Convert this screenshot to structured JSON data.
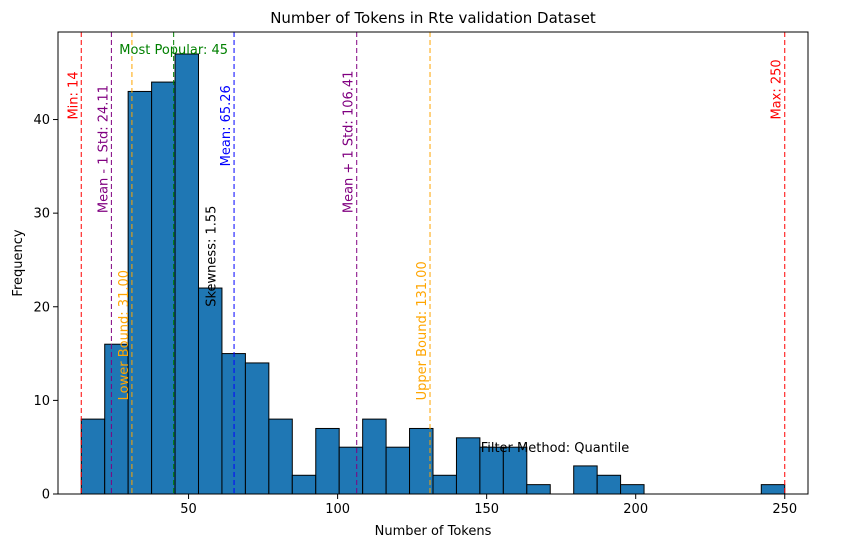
{
  "chart_data": {
    "type": "bar",
    "title": "Number of Tokens in Rte validation Dataset",
    "xlabel": "Number of Tokens",
    "ylabel": "Frequency",
    "xlim": [
      6.2,
      257.8
    ],
    "ylim": [
      0,
      49.35
    ],
    "xticks": [
      50,
      100,
      150,
      200,
      250
    ],
    "yticks": [
      0,
      10,
      20,
      30,
      40
    ],
    "bar_color": "#1f77b4",
    "bar_edge_color": "#000000",
    "bins": [
      {
        "x0": 14.0,
        "x1": 21.87,
        "count": 8
      },
      {
        "x0": 21.87,
        "x1": 29.73,
        "count": 16
      },
      {
        "x0": 29.73,
        "x1": 37.6,
        "count": 43
      },
      {
        "x0": 37.6,
        "x1": 45.47,
        "count": 44
      },
      {
        "x0": 45.47,
        "x1": 53.33,
        "count": 47
      },
      {
        "x0": 53.33,
        "x1": 61.2,
        "count": 22
      },
      {
        "x0": 61.2,
        "x1": 69.07,
        "count": 15
      },
      {
        "x0": 69.07,
        "x1": 76.93,
        "count": 14
      },
      {
        "x0": 76.93,
        "x1": 84.8,
        "count": 8
      },
      {
        "x0": 84.8,
        "x1": 92.67,
        "count": 2
      },
      {
        "x0": 92.67,
        "x1": 100.53,
        "count": 7
      },
      {
        "x0": 100.53,
        "x1": 108.4,
        "count": 5
      },
      {
        "x0": 108.4,
        "x1": 116.27,
        "count": 8
      },
      {
        "x0": 116.27,
        "x1": 124.13,
        "count": 5
      },
      {
        "x0": 124.13,
        "x1": 132.0,
        "count": 7
      },
      {
        "x0": 132.0,
        "x1": 139.87,
        "count": 2
      },
      {
        "x0": 139.87,
        "x1": 147.73,
        "count": 6
      },
      {
        "x0": 147.73,
        "x1": 155.6,
        "count": 5
      },
      {
        "x0": 155.6,
        "x1": 163.47,
        "count": 5
      },
      {
        "x0": 163.47,
        "x1": 171.33,
        "count": 1
      },
      {
        "x0": 171.33,
        "x1": 179.2,
        "count": 0
      },
      {
        "x0": 179.2,
        "x1": 187.07,
        "count": 3
      },
      {
        "x0": 187.07,
        "x1": 194.93,
        "count": 2
      },
      {
        "x0": 194.93,
        "x1": 202.8,
        "count": 1
      },
      {
        "x0": 202.8,
        "x1": 210.67,
        "count": 0
      },
      {
        "x0": 210.67,
        "x1": 218.53,
        "count": 0
      },
      {
        "x0": 218.53,
        "x1": 226.4,
        "count": 0
      },
      {
        "x0": 226.4,
        "x1": 234.27,
        "count": 0
      },
      {
        "x0": 234.27,
        "x1": 242.13,
        "count": 0
      },
      {
        "x0": 242.13,
        "x1": 250.0,
        "count": 1
      }
    ],
    "reference_lines": [
      {
        "id": "min",
        "x": 14,
        "label": "Min: 14",
        "color": "#ff0000",
        "label_y": 40
      },
      {
        "id": "mean-minus-std",
        "x": 24.11,
        "label": "Mean - 1 Std: 24.11",
        "color": "#800080",
        "label_y": 30
      },
      {
        "id": "lower-bound",
        "x": 31.0,
        "label": "Lower Bound: 31.00",
        "color": "#ffa500",
        "label_y": 10
      },
      {
        "id": "most-popular",
        "x": 45,
        "label": "",
        "color": "#008000",
        "label_y": 0
      },
      {
        "id": "mean",
        "x": 65.26,
        "label": "Mean: 65.26",
        "color": "#0000ff",
        "label_y": 35
      },
      {
        "id": "mean-plus-std",
        "x": 106.41,
        "label": "Mean + 1 Std: 106.41",
        "color": "#800080",
        "label_y": 30
      },
      {
        "id": "upper-bound",
        "x": 131.0,
        "label": "Upper Bound: 131.00",
        "color": "#ffa500",
        "label_y": 10
      },
      {
        "id": "max",
        "x": 250,
        "label": "Max: 250",
        "color": "#ff0000",
        "label_y": 40
      }
    ],
    "annotations": [
      {
        "id": "most-popular",
        "text": "Most Popular: 45",
        "x": 45,
        "y": 47,
        "color": "#008000",
        "rotation": 0,
        "anchor": "middle"
      },
      {
        "id": "skewness",
        "text": "Skewness: 1.55",
        "x": 60.3,
        "y": 20,
        "color": "#000000",
        "rotation": 90,
        "anchor": "start"
      },
      {
        "id": "filter-method",
        "text": "Filter Method: Quantile",
        "x": 148,
        "y": 4.5,
        "color": "#000000",
        "rotation": 0,
        "anchor": "start"
      }
    ]
  }
}
